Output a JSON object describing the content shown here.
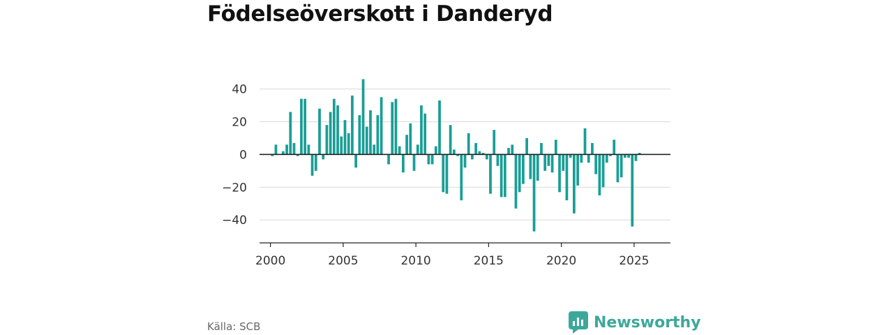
{
  "title": "Födelseöverskott i Danderyd",
  "source": "Källa: SCB",
  "brand": {
    "name": "Newsworthy",
    "icon": "newsworthy-logo-icon",
    "color": "#3da89a"
  },
  "chart_data": {
    "type": "bar",
    "title": "Födelseöverskott i Danderyd",
    "xlabel": "",
    "ylabel": "",
    "bar_color": "#1a9e96",
    "xlim": [
      1999.25,
      2027.5
    ],
    "ylim": [
      -54,
      56
    ],
    "xticks": [
      2000,
      2005,
      2010,
      2015,
      2020,
      2025
    ],
    "xtick_labels": [
      "2000",
      "2005",
      "2010",
      "2015",
      "2020",
      "2025"
    ],
    "yticks": [
      40,
      20,
      0,
      -20,
      -40
    ],
    "ytick_labels": [
      "40",
      "20",
      "0",
      "−20",
      "−40"
    ],
    "grid": true,
    "x": [
      2000.125,
      2000.375,
      2000.625,
      2000.875,
      2001.125,
      2001.375,
      2001.625,
      2001.875,
      2002.125,
      2002.375,
      2002.625,
      2002.875,
      2003.125,
      2003.375,
      2003.625,
      2003.875,
      2004.125,
      2004.375,
      2004.625,
      2004.875,
      2005.125,
      2005.375,
      2005.625,
      2005.875,
      2006.125,
      2006.375,
      2006.625,
      2006.875,
      2007.125,
      2007.375,
      2007.625,
      2007.875,
      2008.125,
      2008.375,
      2008.625,
      2008.875,
      2009.125,
      2009.375,
      2009.625,
      2009.875,
      2010.125,
      2010.375,
      2010.625,
      2010.875,
      2011.125,
      2011.375,
      2011.625,
      2011.875,
      2012.125,
      2012.375,
      2012.625,
      2012.875,
      2013.125,
      2013.375,
      2013.625,
      2013.875,
      2014.125,
      2014.375,
      2014.625,
      2014.875,
      2015.125,
      2015.375,
      2015.625,
      2015.875,
      2016.125,
      2016.375,
      2016.625,
      2016.875,
      2017.125,
      2017.375,
      2017.625,
      2017.875,
      2018.125,
      2018.375,
      2018.625,
      2018.875,
      2019.125,
      2019.375,
      2019.625,
      2019.875,
      2020.125,
      2020.375,
      2020.625,
      2020.875,
      2021.125,
      2021.375,
      2021.625,
      2021.875,
      2022.125,
      2022.375,
      2022.625,
      2022.875,
      2023.125,
      2023.375,
      2023.625,
      2023.875,
      2024.125,
      2024.375,
      2024.625,
      2024.875,
      2025.125,
      2025.375
    ],
    "values": [
      -1,
      6,
      0,
      2,
      6,
      26,
      7,
      -1,
      34,
      34,
      6,
      -13,
      -10,
      28,
      -3,
      18,
      26,
      34,
      30,
      11,
      21,
      13,
      36,
      -8,
      24,
      46,
      17,
      27,
      6,
      24,
      35,
      0,
      -6,
      32,
      34,
      5,
      -11,
      12,
      19,
      -10,
      6,
      30,
      25,
      -6,
      -6,
      5,
      33,
      -23,
      -24,
      18,
      3,
      -1,
      -28,
      -8,
      13,
      -3,
      7,
      2,
      1,
      -3,
      -24,
      15,
      -7,
      -26,
      -26,
      4,
      6,
      -33,
      -23,
      -18,
      10,
      -15,
      -47,
      -16,
      7,
      -10,
      -7,
      -11,
      9,
      -23,
      -10,
      -28,
      -2,
      -36,
      -19,
      -5,
      16,
      -5,
      7,
      -12,
      -25,
      -20,
      -5,
      -1,
      9,
      -17,
      -14,
      -2,
      -2,
      -44,
      -4,
      1
    ]
  }
}
